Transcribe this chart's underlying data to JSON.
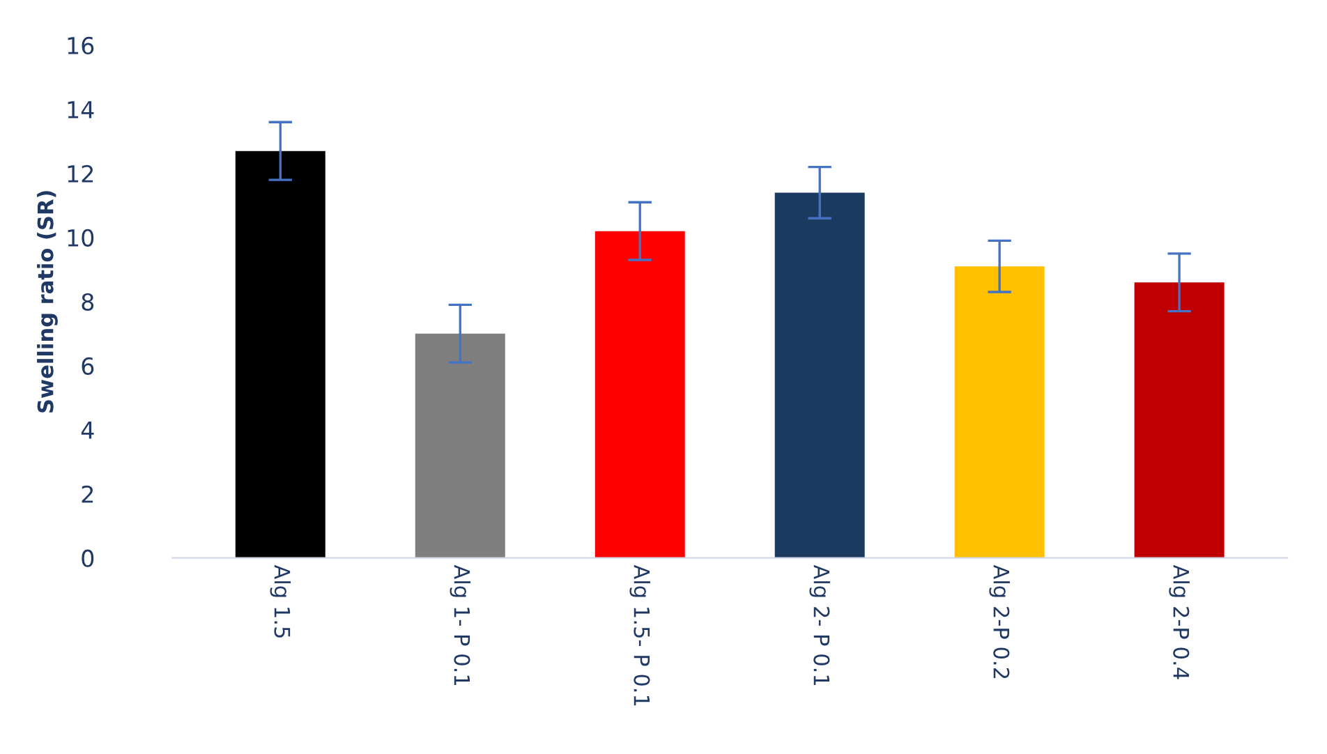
{
  "chart_data": {
    "type": "bar",
    "ylabel": "Swelling ratio (SR)",
    "categories": [
      "Alg 1.5",
      "Alg 1- P 0.1",
      "Alg 1.5- P 0.1",
      "Alg 2- P 0.1",
      "Alg 2-P 0.2",
      "Alg 2-P 0.4"
    ],
    "values": [
      12.7,
      7.0,
      10.2,
      11.4,
      9.1,
      8.6
    ],
    "errors": [
      0.9,
      0.9,
      0.9,
      0.8,
      0.8,
      0.9
    ],
    "colors": [
      "#000000",
      "#7f7f7f",
      "#ff0000",
      "#1a3a60",
      "#ffc000",
      "#c00000"
    ],
    "ylim": [
      0,
      16
    ],
    "yticks": [
      0,
      2,
      4,
      6,
      8,
      10,
      12,
      14,
      16
    ],
    "grid": false
  }
}
